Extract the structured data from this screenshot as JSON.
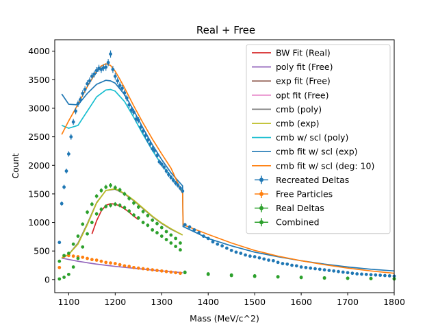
{
  "chart_data": {
    "type": "scatter",
    "title": "Real + Free",
    "xlabel": "Mass (MeV/c^2)",
    "ylabel": "Count",
    "xlim": [
      1070,
      1800
    ],
    "ylim": [
      -230,
      4200
    ],
    "xticks": [
      1100,
      1200,
      1300,
      1400,
      1500,
      1600,
      1700,
      1800
    ],
    "yticks": [
      0,
      500,
      1000,
      1500,
      2000,
      2500,
      3000,
      3500,
      4000
    ],
    "grid": false,
    "legend_position": "upper right",
    "lines": [
      {
        "name": "BW Fit (Real)",
        "color": "#d62728",
        "x": [
          1150,
          1160,
          1170,
          1180,
          1190,
          1200,
          1210,
          1220,
          1230,
          1240,
          1250
        ],
        "y": [
          800,
          1030,
          1200,
          1300,
          1330,
          1320,
          1290,
          1240,
          1180,
          1110,
          1050
        ]
      },
      {
        "name": "poly fit (Free)",
        "color": "#9467bd",
        "x": [
          1085,
          1120,
          1160,
          1200,
          1250,
          1300,
          1345
        ],
        "y": [
          375,
          320,
          270,
          230,
          190,
          150,
          120
        ]
      },
      {
        "name": "exp fit (Free)",
        "color": "#8c564b",
        "x": [],
        "y": []
      },
      {
        "name": "opt fit (Free)",
        "color": "#e377c2",
        "x": [],
        "y": []
      },
      {
        "name": "cmb (poly)",
        "color": "#7f7f7f",
        "x": [
          1085,
          1100,
          1120,
          1140,
          1160,
          1180,
          1200,
          1220,
          1240,
          1260,
          1280,
          1300,
          1320,
          1345
        ],
        "y": [
          370,
          440,
          640,
          980,
          1350,
          1560,
          1580,
          1500,
          1380,
          1240,
          1100,
          980,
          880,
          780
        ]
      },
      {
        "name": "cmb (exp)",
        "color": "#bcbd22",
        "x": [
          1085,
          1100,
          1120,
          1140,
          1160,
          1180,
          1200,
          1220,
          1240,
          1260,
          1280,
          1300,
          1320,
          1345
        ],
        "y": [
          380,
          440,
          620,
          960,
          1340,
          1560,
          1590,
          1510,
          1390,
          1250,
          1110,
          990,
          890,
          780
        ]
      },
      {
        "name": "cmb w/ scl (poly)",
        "color": "#17becf",
        "x": [
          1085,
          1100,
          1120,
          1140,
          1160,
          1180,
          1190,
          1200,
          1220,
          1240,
          1260,
          1280,
          1300,
          1320,
          1345
        ],
        "y": [
          2700,
          2650,
          2700,
          2950,
          3200,
          3320,
          3330,
          3300,
          3120,
          2840,
          2540,
          2260,
          2010,
          1800,
          1560
        ]
      },
      {
        "name": "cmb fit w/ scl (exp)",
        "color": "#1f77b4",
        "x": [
          1085,
          1100,
          1120,
          1140,
          1160,
          1180,
          1190,
          1200,
          1220,
          1240,
          1260,
          1280,
          1300,
          1320,
          1345,
          1346,
          1400,
          1450,
          1500,
          1550,
          1600,
          1650,
          1700,
          1750,
          1800
        ],
        "y": [
          3250,
          3070,
          3060,
          3260,
          3420,
          3490,
          3480,
          3440,
          3240,
          2960,
          2650,
          2360,
          2100,
          1870,
          1640,
          930,
          720,
          590,
          480,
          400,
          330,
          270,
          220,
          180,
          150
        ]
      },
      {
        "name": "cmb fit w/ scl (deg: 10)",
        "color": "#ff7f0e",
        "x": [
          1085,
          1100,
          1120,
          1140,
          1160,
          1170,
          1180,
          1190,
          1200,
          1210,
          1220,
          1240,
          1260,
          1280,
          1300,
          1320,
          1344,
          1345,
          1346,
          1400,
          1450,
          1500,
          1550,
          1600,
          1650,
          1700,
          1750,
          1800
        ],
        "y": [
          2540,
          2780,
          3070,
          3380,
          3650,
          3740,
          3780,
          3750,
          3650,
          3510,
          3360,
          3040,
          2740,
          2460,
          2200,
          1950,
          1520,
          1520,
          960,
          790,
          640,
          510,
          410,
          330,
          260,
          200,
          150,
          110
        ]
      }
    ],
    "series": [
      {
        "name": "Recreated Deltas",
        "color": "#1f77b4",
        "x": [
          1080,
          1085,
          1090,
          1095,
          1100,
          1105,
          1110,
          1115,
          1120,
          1125,
          1130,
          1135,
          1140,
          1145,
          1150,
          1155,
          1160,
          1165,
          1170,
          1175,
          1180,
          1185,
          1190,
          1195,
          1200,
          1205,
          1210,
          1215,
          1220,
          1225,
          1230,
          1235,
          1240,
          1245,
          1250,
          1255,
          1260,
          1265,
          1270,
          1275,
          1280,
          1285,
          1290,
          1295,
          1300,
          1305,
          1310,
          1315,
          1320,
          1325,
          1330,
          1335,
          1340,
          1345,
          1350,
          1360,
          1370,
          1380,
          1390,
          1400,
          1410,
          1420,
          1430,
          1440,
          1450,
          1460,
          1470,
          1480,
          1490,
          1500,
          1510,
          1520,
          1530,
          1540,
          1550,
          1560,
          1570,
          1580,
          1590,
          1600,
          1610,
          1620,
          1630,
          1640,
          1650,
          1660,
          1670,
          1680,
          1690,
          1700,
          1710,
          1720,
          1730,
          1740,
          1750,
          1760,
          1770,
          1780,
          1790,
          1800
        ],
        "y": [
          650,
          1330,
          1620,
          1900,
          2200,
          2500,
          2760,
          2950,
          3080,
          3150,
          3260,
          3330,
          3430,
          3480,
          3560,
          3600,
          3660,
          3700,
          3680,
          3710,
          3720,
          3800,
          3950,
          3680,
          3560,
          3480,
          3400,
          3350,
          3270,
          3180,
          3060,
          2970,
          2930,
          2810,
          2790,
          2670,
          2600,
          2520,
          2440,
          2370,
          2290,
          2260,
          2170,
          2060,
          2020,
          1970,
          1900,
          1840,
          1790,
          1740,
          1690,
          1650,
          1600,
          1550,
          960,
          920,
          870,
          820,
          760,
          720,
          660,
          620,
          590,
          550,
          510,
          480,
          460,
          430,
          410,
          400,
          380,
          360,
          340,
          330,
          300,
          280,
          270,
          250,
          240,
          220,
          210,
          200,
          190,
          180,
          170,
          160,
          150,
          140,
          130,
          120,
          110,
          100,
          95,
          90,
          85,
          80,
          75,
          70,
          65,
          60
        ]
      },
      {
        "name": "Free Particles",
        "color": "#ff7f0e",
        "x": [
          1080,
          1090,
          1100,
          1110,
          1120,
          1130,
          1140,
          1150,
          1160,
          1170,
          1180,
          1190,
          1200,
          1210,
          1220,
          1230,
          1240,
          1250,
          1260,
          1270,
          1280,
          1290,
          1300,
          1310,
          1320,
          1330,
          1340
        ],
        "y": [
          210,
          410,
          420,
          410,
          400,
          390,
          370,
          350,
          340,
          320,
          300,
          290,
          280,
          260,
          240,
          230,
          210,
          200,
          190,
          180,
          170,
          160,
          150,
          140,
          130,
          120,
          110
        ]
      },
      {
        "name": "Real Deltas",
        "color": "#2ca02c",
        "x": [
          1080,
          1090,
          1100,
          1110,
          1120,
          1130,
          1140,
          1150,
          1160,
          1170,
          1180,
          1190,
          1200,
          1210,
          1220,
          1230,
          1240,
          1250,
          1260,
          1270,
          1280,
          1290,
          1300,
          1310,
          1320,
          1330,
          1340,
          1350,
          1400,
          1450,
          1500,
          1550,
          1600,
          1650,
          1700,
          1750,
          1800
        ],
        "y": [
          10,
          40,
          90,
          220,
          370,
          570,
          800,
          1000,
          1150,
          1230,
          1280,
          1300,
          1320,
          1300,
          1260,
          1200,
          1130,
          1080,
          1000,
          950,
          870,
          820,
          760,
          700,
          640,
          580,
          520,
          120,
          90,
          70,
          55,
          45,
          35,
          25,
          20,
          15,
          10
        ]
      },
      {
        "name": "Combined",
        "color": "#2ca02c",
        "x": [
          1080,
          1090,
          1100,
          1110,
          1120,
          1130,
          1140,
          1150,
          1160,
          1170,
          1180,
          1190,
          1200,
          1210,
          1220,
          1230,
          1240,
          1250,
          1260,
          1270,
          1280,
          1290,
          1300,
          1310,
          1320,
          1330,
          1340,
          1350,
          1400,
          1450,
          1500,
          1550,
          1600,
          1650,
          1700,
          1750,
          1800
        ],
        "y": [
          320,
          420,
          460,
          620,
          760,
          970,
          1180,
          1320,
          1460,
          1560,
          1620,
          1650,
          1610,
          1570,
          1500,
          1420,
          1340,
          1270,
          1190,
          1120,
          1040,
          980,
          910,
          840,
          780,
          720,
          640,
          130,
          100,
          80,
          65,
          50,
          40,
          30,
          25,
          20,
          15
        ]
      }
    ]
  }
}
